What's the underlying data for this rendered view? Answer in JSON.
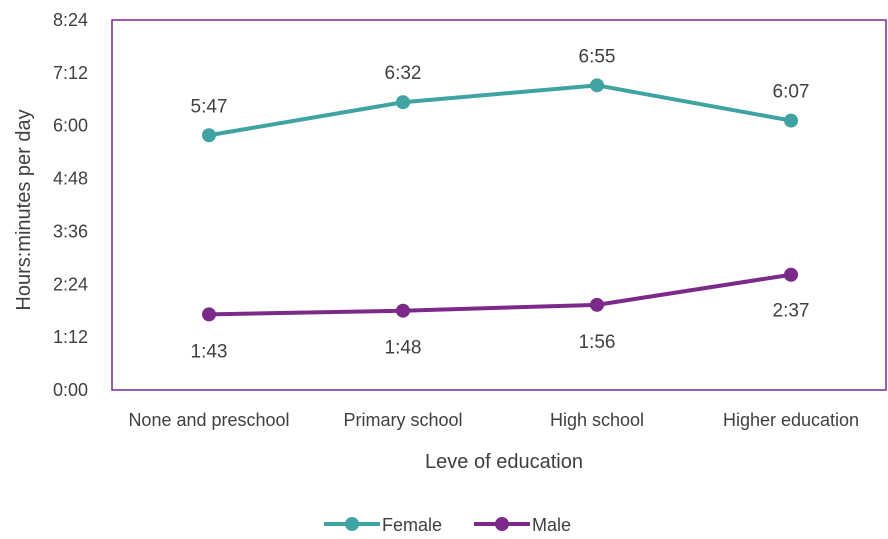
{
  "chart_data": {
    "type": "line",
    "xlabel": "Leve of education",
    "ylabel": "Hours:minutes per day",
    "categories": [
      "None and preschool",
      "Primary school",
      "High school",
      "Higher education"
    ],
    "y_unit": "minutes",
    "ylim": [
      0,
      504
    ],
    "y_ticks": [
      0,
      72,
      144,
      216,
      288,
      360,
      432,
      504
    ],
    "y_tick_labels": [
      "0:00",
      "1:12",
      "2:24",
      "3:36",
      "4:48",
      "6:00",
      "7:12",
      "8:24"
    ],
    "series": [
      {
        "name": "Female",
        "values": [
          347,
          392,
          415,
          367
        ],
        "labels": [
          "5:47",
          "6:32",
          "6:55",
          "6:07"
        ],
        "color": "#3fa3a3"
      },
      {
        "name": "Male",
        "values": [
          103,
          108,
          116,
          157
        ],
        "labels": [
          "1:43",
          "1:48",
          "1:56",
          "2:37"
        ],
        "color": "#7b2a8a"
      }
    ],
    "grid": false,
    "legend": "bottom",
    "plot_border_color": "#7b2a8a"
  }
}
